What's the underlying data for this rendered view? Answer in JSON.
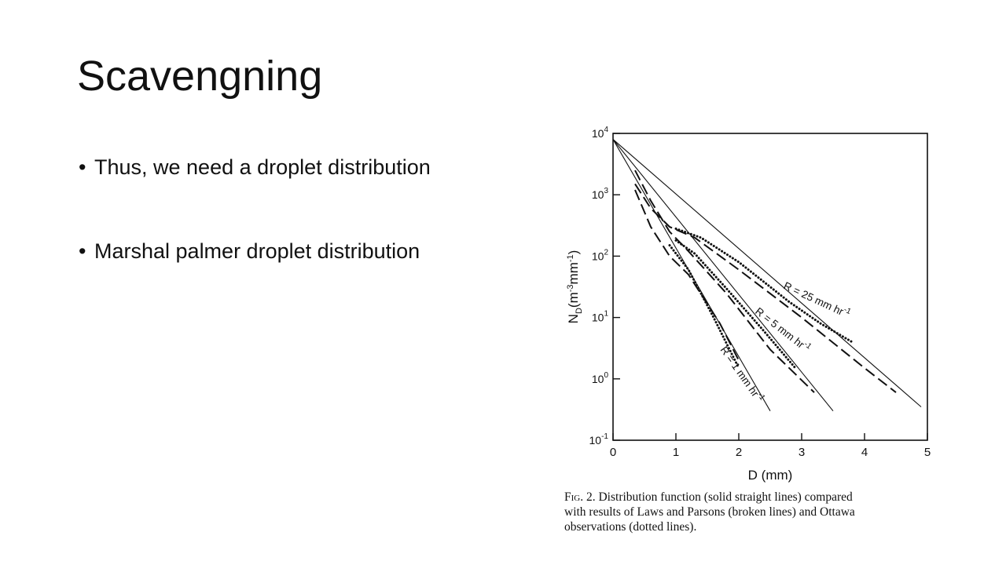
{
  "slide": {
    "title": "Scavengning",
    "bullets": [
      "Thus, we need a droplet distribution",
      "Marshal palmer droplet distribution"
    ],
    "bullet_icon": "bullet-dot"
  },
  "figure": {
    "caption_label": "Fig. 2.",
    "caption_lines": [
      "Distribution function (solid straight lines) compared",
      "with results of Laws and Parsons (broken lines) and Ottawa",
      "observations (dotted lines)."
    ]
  },
  "chart_data": {
    "type": "line",
    "xlabel": "D (mm)",
    "ylabel": "N_D (m^-3 mm^-1)",
    "xlim": [
      0,
      5
    ],
    "ylim": [
      0.1,
      10000
    ],
    "yscale": "log",
    "x_ticks": [
      "0",
      "1",
      "2",
      "3",
      "4",
      "5"
    ],
    "y_ticks": [
      "10^4",
      "10^3",
      "10^2",
      "10^1",
      "10^0",
      "10^-1"
    ],
    "grid": false,
    "series": [
      {
        "name": "R = 25 mm hr^-1",
        "style": "solid",
        "x": [
          0,
          4.9
        ],
        "y": [
          8000,
          0.35
        ]
      },
      {
        "name": "R = 5 mm hr^-1",
        "style": "solid",
        "x": [
          0,
          3.5
        ],
        "y": [
          8000,
          0.3
        ]
      },
      {
        "name": "R = 1 mm hr^-1",
        "style": "solid",
        "x": [
          0,
          2.5
        ],
        "y": [
          8000,
          0.3
        ]
      },
      {
        "name": "Laws and Parsons, R = 25 mm hr^-1",
        "style": "dashed",
        "x": [
          0.35,
          0.6,
          0.9,
          1.3,
          2,
          3,
          4,
          4.5
        ],
        "y": [
          1500,
          600,
          300,
          200,
          60,
          10,
          1.5,
          0.6
        ]
      },
      {
        "name": "Laws and Parsons, R = 5 mm hr^-1",
        "style": "dashed",
        "x": [
          0.35,
          0.6,
          0.9,
          1.2,
          1.8,
          2.5,
          3.2
        ],
        "y": [
          2500,
          800,
          250,
          120,
          25,
          3,
          0.6
        ]
      },
      {
        "name": "Laws and Parsons, R = 1 mm hr^-1",
        "style": "dashed",
        "x": [
          0.35,
          0.6,
          0.9,
          1.2,
          1.7,
          2.0
        ],
        "y": [
          1200,
          300,
          100,
          50,
          8,
          2
        ]
      },
      {
        "name": "Ottawa, R = 25 mm hr^-1",
        "style": "dotted",
        "x": [
          1.0,
          1.4,
          2.0,
          2.8,
          3.3,
          3.8
        ],
        "y": [
          280,
          200,
          80,
          18,
          8,
          4
        ]
      },
      {
        "name": "Ottawa, R = 5 mm hr^-1",
        "style": "dotted",
        "x": [
          1.0,
          1.3,
          1.8,
          2.4,
          2.9
        ],
        "y": [
          180,
          110,
          30,
          6,
          1.5
        ]
      },
      {
        "name": "Ottawa, R = 1 mm hr^-1",
        "style": "dotted",
        "x": [
          0.9,
          1.2,
          1.6,
          2.0
        ],
        "y": [
          150,
          60,
          10,
          1.5
        ]
      }
    ],
    "annotations": [
      {
        "text": "R = 25 mm hr^-1",
        "x": 2.7,
        "y": 30
      },
      {
        "text": "R = 5 mm hr^-1",
        "x": 2.25,
        "y": 12
      },
      {
        "text": "R = 1 mm hr^-1",
        "x": 1.7,
        "y": 3
      }
    ]
  }
}
